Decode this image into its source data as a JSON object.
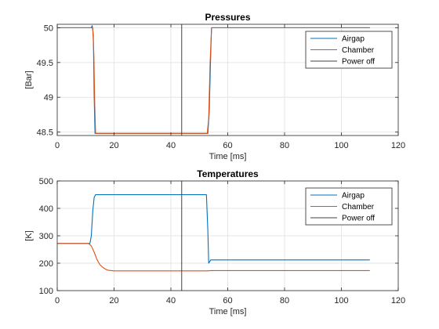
{
  "colors": {
    "airgap": "#0072bd",
    "chamber": "#d95319",
    "power_off": "#404040",
    "grid": "#e6e6e6",
    "axis": "#262626"
  },
  "chart_data": [
    {
      "type": "line",
      "title": "Pressures",
      "xlabel": "Time [ms]",
      "ylabel": "[Bar]",
      "xlim": [
        0,
        120
      ],
      "ylim": [
        48.45,
        50.05
      ],
      "xticks": [
        0,
        20,
        40,
        60,
        80,
        100,
        120
      ],
      "yticks": [
        48.5,
        49,
        49.5,
        50
      ],
      "ytick_labels": [
        "48.5",
        "49",
        "49.5",
        "50"
      ],
      "grid": true,
      "legend_position": "top-right",
      "series": [
        {
          "name": "Airgap",
          "color_key": "airgap",
          "x": [
            0,
            12,
            12.3,
            12.7,
            13.0,
            13.3,
            53.0,
            53.5,
            54.0,
            54.3,
            110
          ],
          "y": [
            50,
            50,
            50.03,
            49.9,
            49.0,
            48.48,
            48.48,
            48.8,
            49.6,
            50,
            50
          ]
        },
        {
          "name": "Chamber",
          "color_key": "chamber",
          "x": [
            0,
            12.5,
            12.9,
            13.2,
            13.5,
            52.8,
            53.3,
            53.8,
            54.3,
            110
          ],
          "y": [
            50,
            50,
            49.6,
            48.9,
            48.48,
            48.48,
            48.7,
            49.5,
            50,
            50
          ]
        }
      ],
      "vertical_line": {
        "name": "Power off",
        "color_key": "power_off",
        "x": 43.8
      }
    },
    {
      "type": "line",
      "title": "Temperatures",
      "xlabel": "Time [ms]",
      "ylabel": "[K]",
      "xlim": [
        0,
        120
      ],
      "ylim": [
        100,
        500
      ],
      "xticks": [
        0,
        20,
        40,
        60,
        80,
        100,
        120
      ],
      "yticks": [
        100,
        200,
        300,
        400,
        500
      ],
      "ytick_labels": [
        "100",
        "200",
        "300",
        "400",
        "500"
      ],
      "grid": true,
      "legend_position": "top-right",
      "series": [
        {
          "name": "Airgap",
          "color_key": "airgap",
          "x": [
            0,
            11.5,
            12,
            12.5,
            13,
            13.5,
            52.5,
            53,
            53.3,
            54,
            110
          ],
          "y": [
            272,
            272,
            300,
            390,
            440,
            450,
            450,
            320,
            200,
            212,
            212
          ]
        },
        {
          "name": "Chamber",
          "color_key": "chamber",
          "x": [
            0,
            11,
            12,
            13,
            14,
            15,
            16,
            17,
            18,
            20,
            25,
            53,
            54,
            110
          ],
          "y": [
            272,
            272,
            263,
            240,
            213,
            195,
            185,
            178,
            174,
            172,
            172,
            172,
            173,
            173
          ]
        }
      ],
      "vertical_line": {
        "name": "Power off",
        "color_key": "power_off",
        "x": 43.8
      }
    }
  ]
}
